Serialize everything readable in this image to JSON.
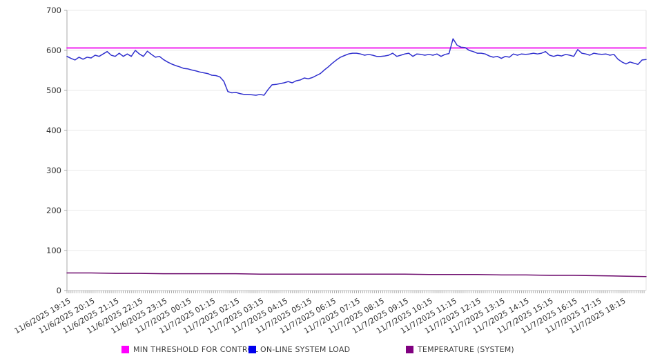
{
  "chart_data": {
    "type": "line",
    "title": "",
    "xlabel": "",
    "ylabel": "",
    "ylim": [
      0,
      700
    ],
    "y_ticks": [
      0,
      100,
      200,
      300,
      400,
      500,
      600,
      700
    ],
    "grid": "horizontal",
    "legend_position": "bottom",
    "x_total_minutes": 1440,
    "x_label_step_minutes": 60,
    "minor_tick_minutes": 5,
    "x_labels": [
      "11/6/2025 19:15",
      "11/6/2025 20:15",
      "11/6/2025 21:15",
      "11/6/2025 22:15",
      "11/6/2025 23:15",
      "11/7/2025 00:15",
      "11/7/2025 01:15",
      "11/7/2025 02:15",
      "11/7/2025 03:15",
      "11/7/2025 04:15",
      "11/7/2025 05:15",
      "11/7/2025 06:15",
      "11/7/2025 07:15",
      "11/7/2025 08:15",
      "11/7/2025 09:15",
      "11/7/2025 10:15",
      "11/7/2025 11:15",
      "11/7/2025 12:15",
      "11/7/2025 13:15",
      "11/7/2025 14:15",
      "11/7/2025 15:15",
      "11/7/2025 16:15",
      "11/7/2025 17:15",
      "11/7/2025 18:15"
    ],
    "series": [
      {
        "name": "MIN THRESHOLD FOR CONTROL",
        "color": "#ee00ee",
        "legend_color": "#ff00ff",
        "step_minutes": 1440,
        "values": [
          606,
          606
        ]
      },
      {
        "name": "ON-LINE SYSTEM LOAD",
        "color": "#3030ce",
        "legend_color": "#0000ee",
        "step_minutes": 10,
        "values": [
          585,
          580,
          576,
          583,
          578,
          583,
          581,
          588,
          585,
          591,
          597,
          588,
          585,
          593,
          585,
          591,
          585,
          600,
          591,
          585,
          598,
          590,
          583,
          585,
          577,
          571,
          566,
          562,
          559,
          555,
          554,
          551,
          549,
          546,
          544,
          542,
          538,
          537,
          534,
          523,
          497,
          494,
          495,
          492,
          490,
          490,
          489,
          488,
          490,
          488,
          502,
          514,
          515,
          517,
          519,
          522,
          519,
          524,
          526,
          531,
          529,
          532,
          537,
          542,
          551,
          559,
          568,
          576,
          583,
          587,
          591,
          593,
          593,
          591,
          588,
          590,
          588,
          585,
          585,
          586,
          588,
          593,
          585,
          588,
          591,
          593,
          585,
          591,
          590,
          588,
          590,
          588,
          591,
          585,
          590,
          592,
          629,
          613,
          608,
          607,
          600,
          597,
          593,
          593,
          591,
          586,
          583,
          585,
          580,
          585,
          583,
          591,
          588,
          591,
          590,
          591,
          593,
          591,
          593,
          597,
          588,
          585,
          588,
          586,
          590,
          588,
          585,
          602,
          593,
          591,
          588,
          593,
          591,
          590,
          591,
          588,
          590,
          578,
          571,
          566,
          571,
          568,
          565,
          576,
          577
        ]
      },
      {
        "name": "TEMPERATURE (SYSTEM)",
        "color": "#6c096c",
        "legend_color": "#800080",
        "step_minutes": 60,
        "values": [
          44,
          44,
          43,
          43,
          42,
          42,
          42,
          42,
          41,
          41,
          41,
          41,
          41,
          41,
          41,
          40,
          40,
          40,
          39,
          39,
          38,
          38,
          37,
          36,
          35
        ]
      }
    ]
  }
}
